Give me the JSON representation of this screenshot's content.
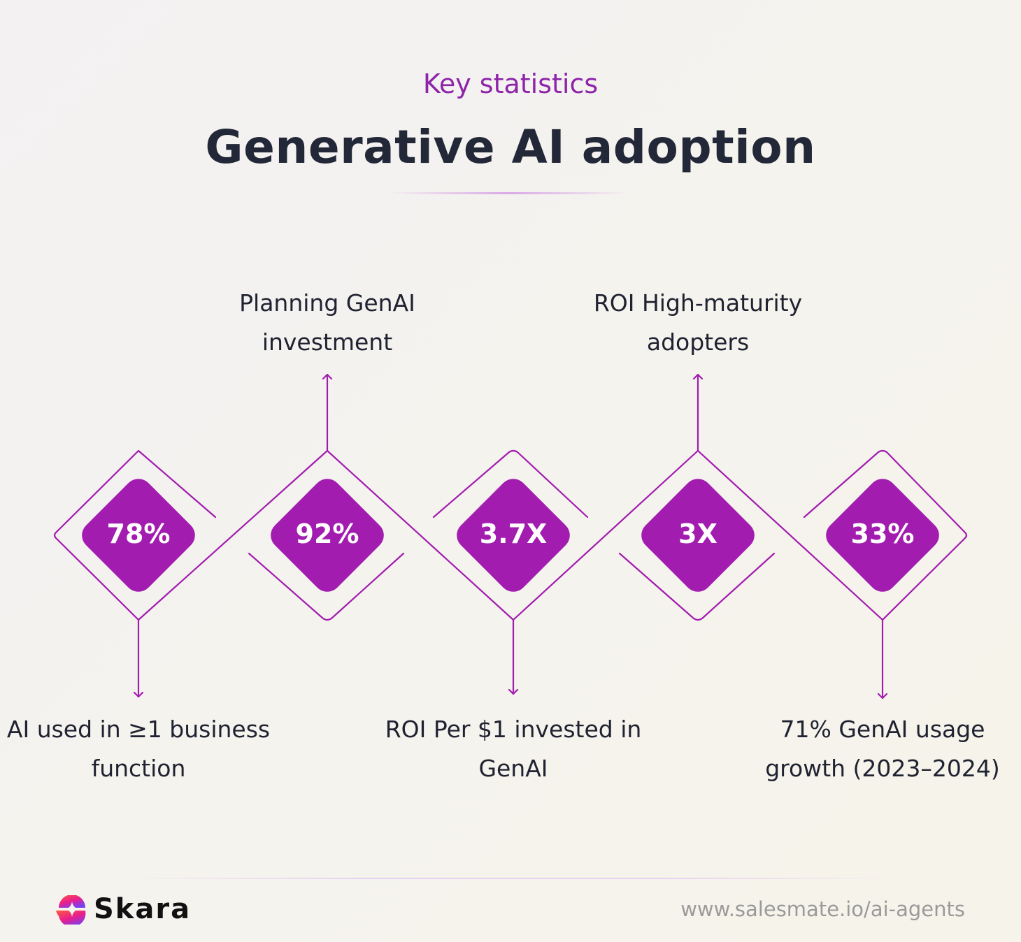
{
  "header": {
    "kicker": "Key statistics",
    "title": "Generative AI adoption"
  },
  "stats": [
    {
      "value": "78%",
      "label_line1": "AI used in ≥1 business",
      "label_line2": "function",
      "label_position": "below"
    },
    {
      "value": "92%",
      "label_line1": "Planning GenAI",
      "label_line2": "investment",
      "label_position": "above"
    },
    {
      "value": "3.7X",
      "label_line1": "ROI Per $1 invested in",
      "label_line2": "GenAI",
      "label_position": "below"
    },
    {
      "value": "3X",
      "label_line1": "ROI High-maturity",
      "label_line2": "adopters",
      "label_position": "above"
    },
    {
      "value": "33%",
      "label_line1": "71% GenAI usage",
      "label_line2": "growth (2023–2024)",
      "label_position": "below"
    }
  ],
  "footer": {
    "brand": "Skara",
    "url": "www.salesmate.io/ai-agents"
  },
  "colors": {
    "accent": "#A21CAF",
    "kicker": "#8E24AA",
    "title": "#232838",
    "logo_gradient": [
      "#FF5A3C",
      "#E91E8C",
      "#7B3FF2"
    ]
  }
}
